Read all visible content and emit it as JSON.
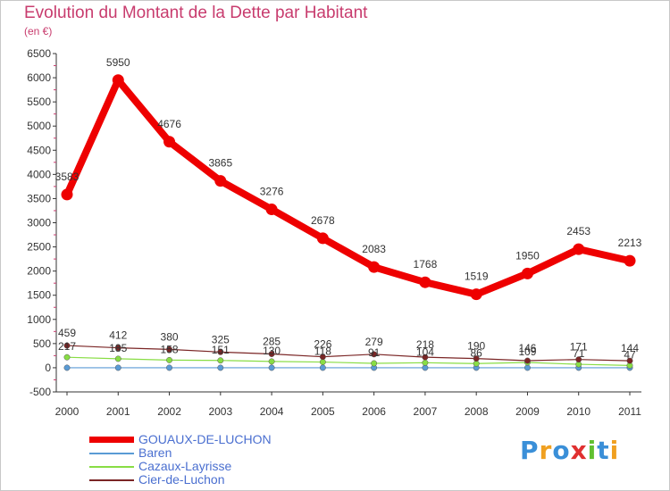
{
  "header": {
    "title": "Evolution du Montant de la Dette par Habitant",
    "subtitle": "(en €)"
  },
  "colors": {
    "title": "#c83c6e",
    "axis": "#333333",
    "tick_minor": "#c83c6e",
    "legend_text": "#4a6fd0"
  },
  "chart_data": {
    "type": "line",
    "title": "Evolution du Montant de la Dette par Habitant",
    "ylabel": "(en €)",
    "xlabel": "",
    "ylim": [
      -500,
      6500
    ],
    "yticks": [
      -500,
      0,
      500,
      1000,
      1500,
      2000,
      2500,
      3000,
      3500,
      4000,
      4500,
      5000,
      5500,
      6000,
      6500
    ],
    "x": [
      "2000",
      "2001",
      "2002",
      "2003",
      "2004",
      "2005",
      "2006",
      "2007",
      "2008",
      "2009",
      "2010",
      "2011"
    ],
    "series": [
      {
        "name": "GOUAUX-DE-LUCHON",
        "color": "#ee0000",
        "width": 8,
        "values": [
          3583,
          5950,
          4676,
          3865,
          3276,
          2678,
          2083,
          1768,
          1519,
          1950,
          2453,
          2213
        ],
        "labels": [
          "3583",
          "5950",
          "4676",
          "3865",
          "3276",
          "2678",
          "2083",
          "1768",
          "1519",
          "1950",
          "2453",
          "2213"
        ]
      },
      {
        "name": "Baren",
        "color": "#5a9bd5",
        "width": 1.2,
        "values": [
          0,
          0,
          0,
          0,
          0,
          0,
          0,
          0,
          0,
          0,
          0,
          0
        ],
        "labels": []
      },
      {
        "name": "Cazaux-Layrisse",
        "color": "#88dd44",
        "width": 1.2,
        "values": [
          217,
          185,
          158,
          151,
          130,
          118,
          91,
          104,
          86,
          109,
          71,
          47
        ],
        "labels": [
          "217",
          "185",
          "158",
          "151",
          "130",
          "118",
          "91",
          "104",
          "86",
          "109",
          "71",
          "47"
        ]
      },
      {
        "name": "Cier-de-Luchon",
        "color": "#7a2525",
        "width": 1.2,
        "values": [
          459,
          412,
          380,
          325,
          285,
          226,
          279,
          218,
          190,
          146,
          171,
          144
        ],
        "labels": [
          "459",
          "412",
          "380",
          "325",
          "285",
          "226",
          "279",
          "218",
          "190",
          "146",
          "171",
          "144"
        ]
      }
    ]
  },
  "legend": [
    {
      "label": "GOUAUX-DE-LUCHON",
      "color": "#ee0000",
      "thickness": "thick"
    },
    {
      "label": "Baren",
      "color": "#5a9bd5",
      "thickness": "thin"
    },
    {
      "label": "Cazaux-Layrisse",
      "color": "#88dd44",
      "thickness": "thin"
    },
    {
      "label": "Cier-de-Luchon",
      "color": "#7a2525",
      "thickness": "thin"
    }
  ],
  "logo": {
    "letters": [
      "P",
      "r",
      "o",
      "x",
      "i",
      "t",
      "i"
    ],
    "colors": [
      "#3a8fd8",
      "#f0a020",
      "#3a8fd8",
      "#e03030",
      "#60c030",
      "#3a8fd8",
      "#f0a020"
    ]
  }
}
